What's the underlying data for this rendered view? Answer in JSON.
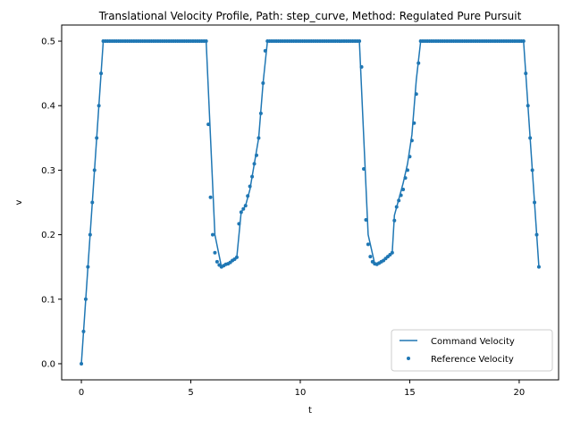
{
  "chart_data": {
    "type": "line",
    "title": "Translational Velocity Profile, Path: step_curve, Method: Regulated Pure Pursuit",
    "xlabel": "t",
    "ylabel": "v",
    "xlim": [
      -0.9,
      21.8
    ],
    "ylim": [
      -0.025,
      0.525
    ],
    "xticks": [
      0,
      5,
      10,
      15,
      20
    ],
    "yticks": [
      0.0,
      0.1,
      0.2,
      0.3,
      0.4,
      0.5
    ],
    "xtick_labels": [
      "0",
      "5",
      "10",
      "15",
      "20"
    ],
    "ytick_labels": [
      "0.0",
      "0.1",
      "0.2",
      "0.3",
      "0.4",
      "0.5"
    ],
    "grid": false,
    "legend_position": "lower right",
    "series": [
      {
        "name": "Command Velocity",
        "kind": "line",
        "color": "#1f77b4",
        "points": [
          [
            0.0,
            0.0
          ],
          [
            0.1,
            0.05
          ],
          [
            0.2,
            0.1
          ],
          [
            0.3,
            0.15
          ],
          [
            0.4,
            0.2
          ],
          [
            0.5,
            0.25
          ],
          [
            0.6,
            0.3
          ],
          [
            0.7,
            0.35
          ],
          [
            0.8,
            0.4
          ],
          [
            0.9,
            0.45
          ],
          [
            1.0,
            0.5
          ],
          [
            5.7,
            0.5
          ],
          [
            6.1,
            0.2
          ],
          [
            6.4,
            0.15
          ],
          [
            6.8,
            0.156
          ],
          [
            7.1,
            0.165
          ],
          [
            7.3,
            0.235
          ],
          [
            7.5,
            0.245
          ],
          [
            7.7,
            0.27
          ],
          [
            7.9,
            0.31
          ],
          [
            8.1,
            0.35
          ],
          [
            8.3,
            0.435
          ],
          [
            8.5,
            0.5
          ],
          [
            12.7,
            0.5
          ],
          [
            13.1,
            0.2
          ],
          [
            13.4,
            0.155
          ],
          [
            13.7,
            0.158
          ],
          [
            14.0,
            0.165
          ],
          [
            14.2,
            0.172
          ],
          [
            14.3,
            0.23
          ],
          [
            14.5,
            0.255
          ],
          [
            14.7,
            0.28
          ],
          [
            14.9,
            0.31
          ],
          [
            15.1,
            0.355
          ],
          [
            15.3,
            0.44
          ],
          [
            15.5,
            0.5
          ],
          [
            20.2,
            0.5
          ],
          [
            20.3,
            0.45
          ],
          [
            20.4,
            0.4
          ],
          [
            20.5,
            0.35
          ],
          [
            20.6,
            0.3
          ],
          [
            20.7,
            0.25
          ],
          [
            20.8,
            0.2
          ],
          [
            20.9,
            0.15
          ]
        ]
      },
      {
        "name": "Reference Velocity",
        "kind": "scatter",
        "color": "#1f77b4",
        "points": [
          [
            0.0,
            0.0
          ],
          [
            0.1,
            0.05
          ],
          [
            0.2,
            0.1
          ],
          [
            0.3,
            0.15
          ],
          [
            0.4,
            0.2
          ],
          [
            0.5,
            0.25
          ],
          [
            0.6,
            0.3
          ],
          [
            0.7,
            0.35
          ],
          [
            0.8,
            0.4
          ],
          [
            0.9,
            0.45
          ],
          [
            1.0,
            0.5
          ],
          [
            1.1,
            0.5
          ],
          [
            1.2,
            0.5
          ],
          [
            1.3,
            0.5
          ],
          [
            1.4,
            0.5
          ],
          [
            1.5,
            0.5
          ],
          [
            1.6,
            0.5
          ],
          [
            1.7,
            0.5
          ],
          [
            1.8,
            0.5
          ],
          [
            1.9,
            0.5
          ],
          [
            2.0,
            0.5
          ],
          [
            2.1,
            0.5
          ],
          [
            2.2,
            0.5
          ],
          [
            2.3,
            0.5
          ],
          [
            2.4,
            0.5
          ],
          [
            2.5,
            0.5
          ],
          [
            2.6,
            0.5
          ],
          [
            2.7,
            0.5
          ],
          [
            2.8,
            0.5
          ],
          [
            2.9,
            0.5
          ],
          [
            3.0,
            0.5
          ],
          [
            3.1,
            0.5
          ],
          [
            3.2,
            0.5
          ],
          [
            3.3,
            0.5
          ],
          [
            3.4,
            0.5
          ],
          [
            3.5,
            0.5
          ],
          [
            3.6,
            0.5
          ],
          [
            3.7,
            0.5
          ],
          [
            3.8,
            0.5
          ],
          [
            3.9,
            0.5
          ],
          [
            4.0,
            0.5
          ],
          [
            4.1,
            0.5
          ],
          [
            4.2,
            0.5
          ],
          [
            4.3,
            0.5
          ],
          [
            4.4,
            0.5
          ],
          [
            4.5,
            0.5
          ],
          [
            4.6,
            0.5
          ],
          [
            4.7,
            0.5
          ],
          [
            4.8,
            0.5
          ],
          [
            4.9,
            0.5
          ],
          [
            5.0,
            0.5
          ],
          [
            5.1,
            0.5
          ],
          [
            5.2,
            0.5
          ],
          [
            5.3,
            0.5
          ],
          [
            5.4,
            0.5
          ],
          [
            5.5,
            0.5
          ],
          [
            5.6,
            0.5
          ],
          [
            5.7,
            0.5
          ],
          [
            5.8,
            0.371
          ],
          [
            5.9,
            0.258
          ],
          [
            6.0,
            0.2
          ],
          [
            6.1,
            0.172
          ],
          [
            6.2,
            0.158
          ],
          [
            6.3,
            0.153
          ],
          [
            6.4,
            0.15
          ],
          [
            6.5,
            0.152
          ],
          [
            6.6,
            0.154
          ],
          [
            6.7,
            0.155
          ],
          [
            6.8,
            0.157
          ],
          [
            6.9,
            0.16
          ],
          [
            7.0,
            0.162
          ],
          [
            7.1,
            0.165
          ],
          [
            7.2,
            0.217
          ],
          [
            7.3,
            0.235
          ],
          [
            7.4,
            0.24
          ],
          [
            7.5,
            0.245
          ],
          [
            7.6,
            0.26
          ],
          [
            7.7,
            0.275
          ],
          [
            7.8,
            0.29
          ],
          [
            7.9,
            0.31
          ],
          [
            8.0,
            0.323
          ],
          [
            8.1,
            0.35
          ],
          [
            8.2,
            0.388
          ],
          [
            8.3,
            0.435
          ],
          [
            8.4,
            0.485
          ],
          [
            8.5,
            0.5
          ],
          [
            8.6,
            0.5
          ],
          [
            8.7,
            0.5
          ],
          [
            8.8,
            0.5
          ],
          [
            8.9,
            0.5
          ],
          [
            9.0,
            0.5
          ],
          [
            9.1,
            0.5
          ],
          [
            9.2,
            0.5
          ],
          [
            9.3,
            0.5
          ],
          [
            9.4,
            0.5
          ],
          [
            9.5,
            0.5
          ],
          [
            9.6,
            0.5
          ],
          [
            9.7,
            0.5
          ],
          [
            9.8,
            0.5
          ],
          [
            9.9,
            0.5
          ],
          [
            10.0,
            0.5
          ],
          [
            10.1,
            0.5
          ],
          [
            10.2,
            0.5
          ],
          [
            10.3,
            0.5
          ],
          [
            10.4,
            0.5
          ],
          [
            10.5,
            0.5
          ],
          [
            10.6,
            0.5
          ],
          [
            10.7,
            0.5
          ],
          [
            10.8,
            0.5
          ],
          [
            10.9,
            0.5
          ],
          [
            11.0,
            0.5
          ],
          [
            11.1,
            0.5
          ],
          [
            11.2,
            0.5
          ],
          [
            11.3,
            0.5
          ],
          [
            11.4,
            0.5
          ],
          [
            11.5,
            0.5
          ],
          [
            11.6,
            0.5
          ],
          [
            11.7,
            0.5
          ],
          [
            11.8,
            0.5
          ],
          [
            11.9,
            0.5
          ],
          [
            12.0,
            0.5
          ],
          [
            12.1,
            0.5
          ],
          [
            12.2,
            0.5
          ],
          [
            12.3,
            0.5
          ],
          [
            12.4,
            0.5
          ],
          [
            12.5,
            0.5
          ],
          [
            12.6,
            0.5
          ],
          [
            12.7,
            0.5
          ],
          [
            12.8,
            0.46
          ],
          [
            12.9,
            0.302
          ],
          [
            13.0,
            0.223
          ],
          [
            13.1,
            0.185
          ],
          [
            13.2,
            0.166
          ],
          [
            13.3,
            0.158
          ],
          [
            13.4,
            0.155
          ],
          [
            13.5,
            0.154
          ],
          [
            13.6,
            0.156
          ],
          [
            13.7,
            0.158
          ],
          [
            13.8,
            0.16
          ],
          [
            13.9,
            0.163
          ],
          [
            14.0,
            0.166
          ],
          [
            14.1,
            0.169
          ],
          [
            14.2,
            0.172
          ],
          [
            14.3,
            0.222
          ],
          [
            14.4,
            0.243
          ],
          [
            14.5,
            0.253
          ],
          [
            14.6,
            0.261
          ],
          [
            14.7,
            0.27
          ],
          [
            14.8,
            0.288
          ],
          [
            14.9,
            0.3
          ],
          [
            15.0,
            0.321
          ],
          [
            15.1,
            0.346
          ],
          [
            15.2,
            0.373
          ],
          [
            15.3,
            0.418
          ],
          [
            15.4,
            0.466
          ],
          [
            15.5,
            0.5
          ],
          [
            15.6,
            0.5
          ],
          [
            15.7,
            0.5
          ],
          [
            15.8,
            0.5
          ],
          [
            15.9,
            0.5
          ],
          [
            16.0,
            0.5
          ],
          [
            16.1,
            0.5
          ],
          [
            16.2,
            0.5
          ],
          [
            16.3,
            0.5
          ],
          [
            16.4,
            0.5
          ],
          [
            16.5,
            0.5
          ],
          [
            16.6,
            0.5
          ],
          [
            16.7,
            0.5
          ],
          [
            16.8,
            0.5
          ],
          [
            16.9,
            0.5
          ],
          [
            17.0,
            0.5
          ],
          [
            17.1,
            0.5
          ],
          [
            17.2,
            0.5
          ],
          [
            17.3,
            0.5
          ],
          [
            17.4,
            0.5
          ],
          [
            17.5,
            0.5
          ],
          [
            17.6,
            0.5
          ],
          [
            17.7,
            0.5
          ],
          [
            17.8,
            0.5
          ],
          [
            17.9,
            0.5
          ],
          [
            18.0,
            0.5
          ],
          [
            18.1,
            0.5
          ],
          [
            18.2,
            0.5
          ],
          [
            18.3,
            0.5
          ],
          [
            18.4,
            0.5
          ],
          [
            18.5,
            0.5
          ],
          [
            18.6,
            0.5
          ],
          [
            18.7,
            0.5
          ],
          [
            18.8,
            0.5
          ],
          [
            18.9,
            0.5
          ],
          [
            19.0,
            0.5
          ],
          [
            19.1,
            0.5
          ],
          [
            19.2,
            0.5
          ],
          [
            19.3,
            0.5
          ],
          [
            19.4,
            0.5
          ],
          [
            19.5,
            0.5
          ],
          [
            19.6,
            0.5
          ],
          [
            19.7,
            0.5
          ],
          [
            19.8,
            0.5
          ],
          [
            19.9,
            0.5
          ],
          [
            20.0,
            0.5
          ],
          [
            20.1,
            0.5
          ],
          [
            20.2,
            0.5
          ],
          [
            20.3,
            0.45
          ],
          [
            20.4,
            0.4
          ],
          [
            20.5,
            0.35
          ],
          [
            20.6,
            0.3
          ],
          [
            20.7,
            0.25
          ],
          [
            20.8,
            0.2
          ],
          [
            20.9,
            0.15
          ]
        ]
      }
    ]
  }
}
